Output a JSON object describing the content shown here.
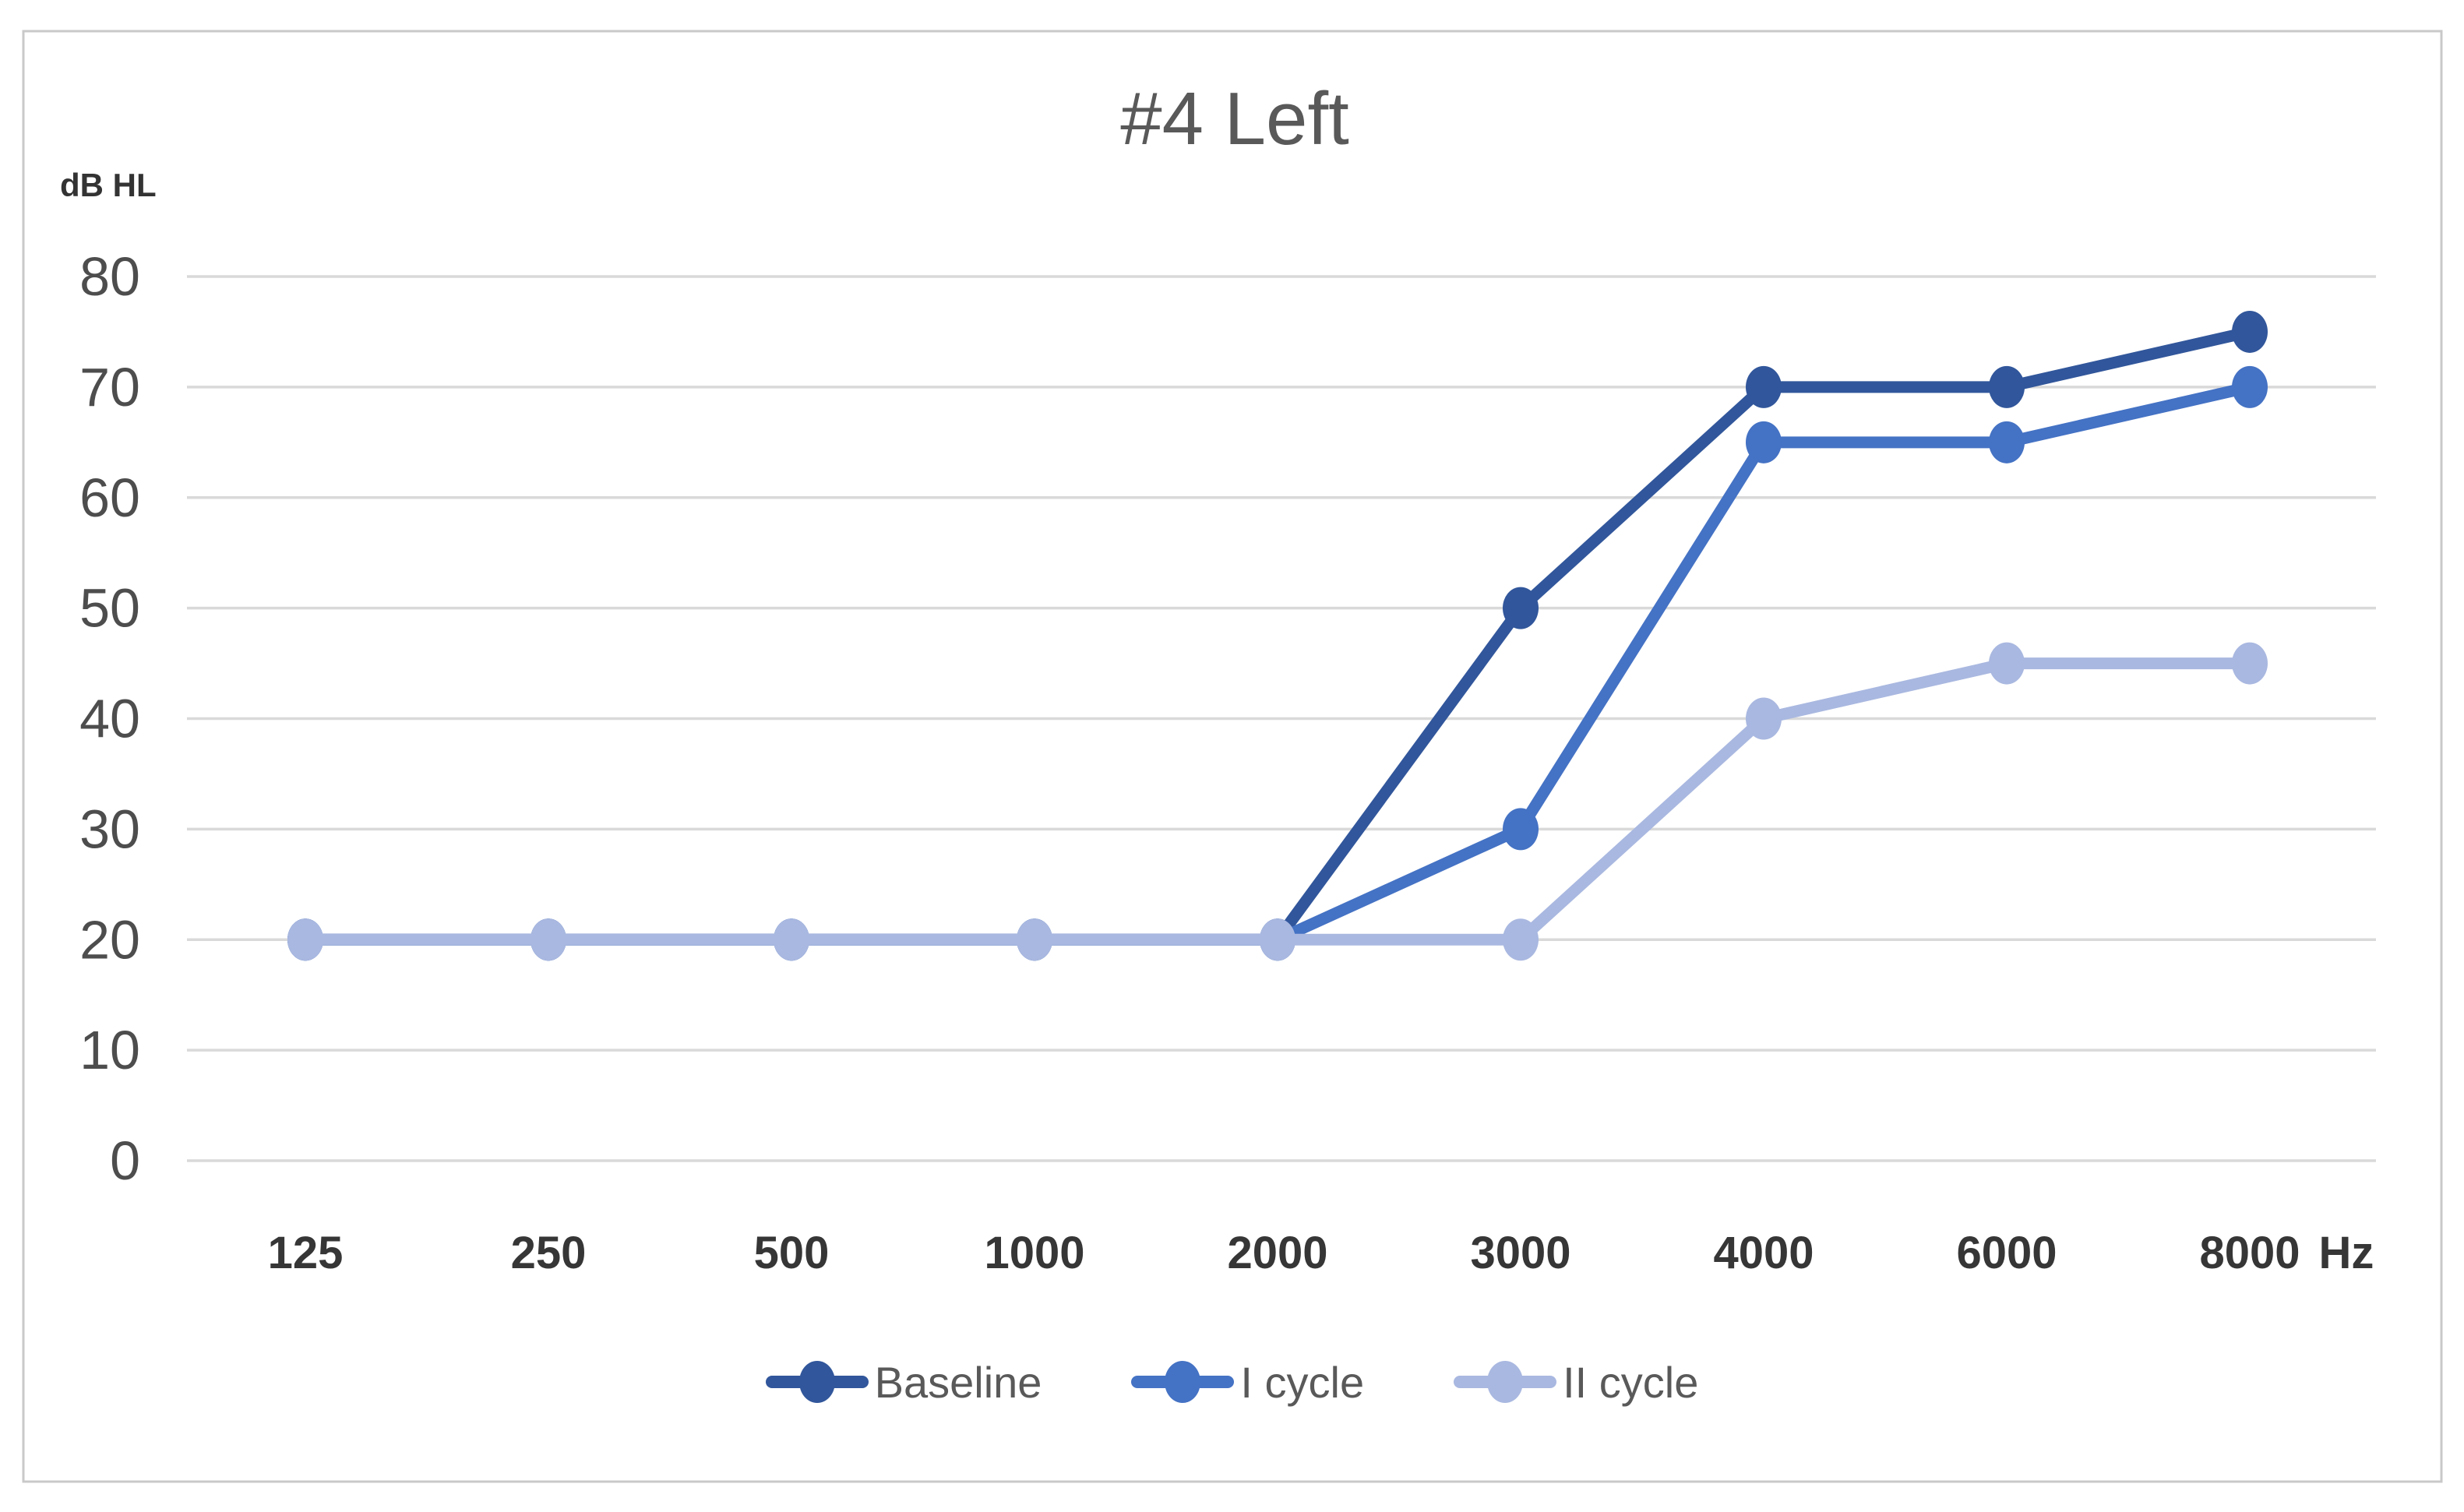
{
  "title": "#4 Left",
  "chart_data": {
    "type": "line",
    "title": "#4 Left",
    "ylabel": "dB HL",
    "xlabel": "Hz",
    "categories": [
      "125",
      "250",
      "500",
      "1000",
      "2000",
      "3000",
      "4000",
      "6000",
      "8000"
    ],
    "ylim": [
      0,
      80
    ],
    "ytick_step": 10,
    "grid": "horizontal",
    "legend_position": "bottom",
    "series": [
      {
        "name": "Baseline",
        "color": "#31569B",
        "values": [
          20,
          20,
          20,
          20,
          20,
          50,
          70,
          70,
          75
        ]
      },
      {
        "name": "I cycle",
        "color": "#4472C4",
        "values": [
          20,
          20,
          20,
          20,
          20,
          30,
          65,
          65,
          70
        ]
      },
      {
        "name": "II cycle",
        "color": "#A9B8E0",
        "values": [
          20,
          20,
          20,
          20,
          20,
          20,
          40,
          45,
          45
        ]
      }
    ]
  },
  "colors": {
    "grid": "#D9D9D9",
    "frame": "#C9C9C9",
    "background": "#FFFFFF",
    "title_text": "#595959",
    "tick_text": "#4D4D4D",
    "legend_text": "#595959"
  }
}
